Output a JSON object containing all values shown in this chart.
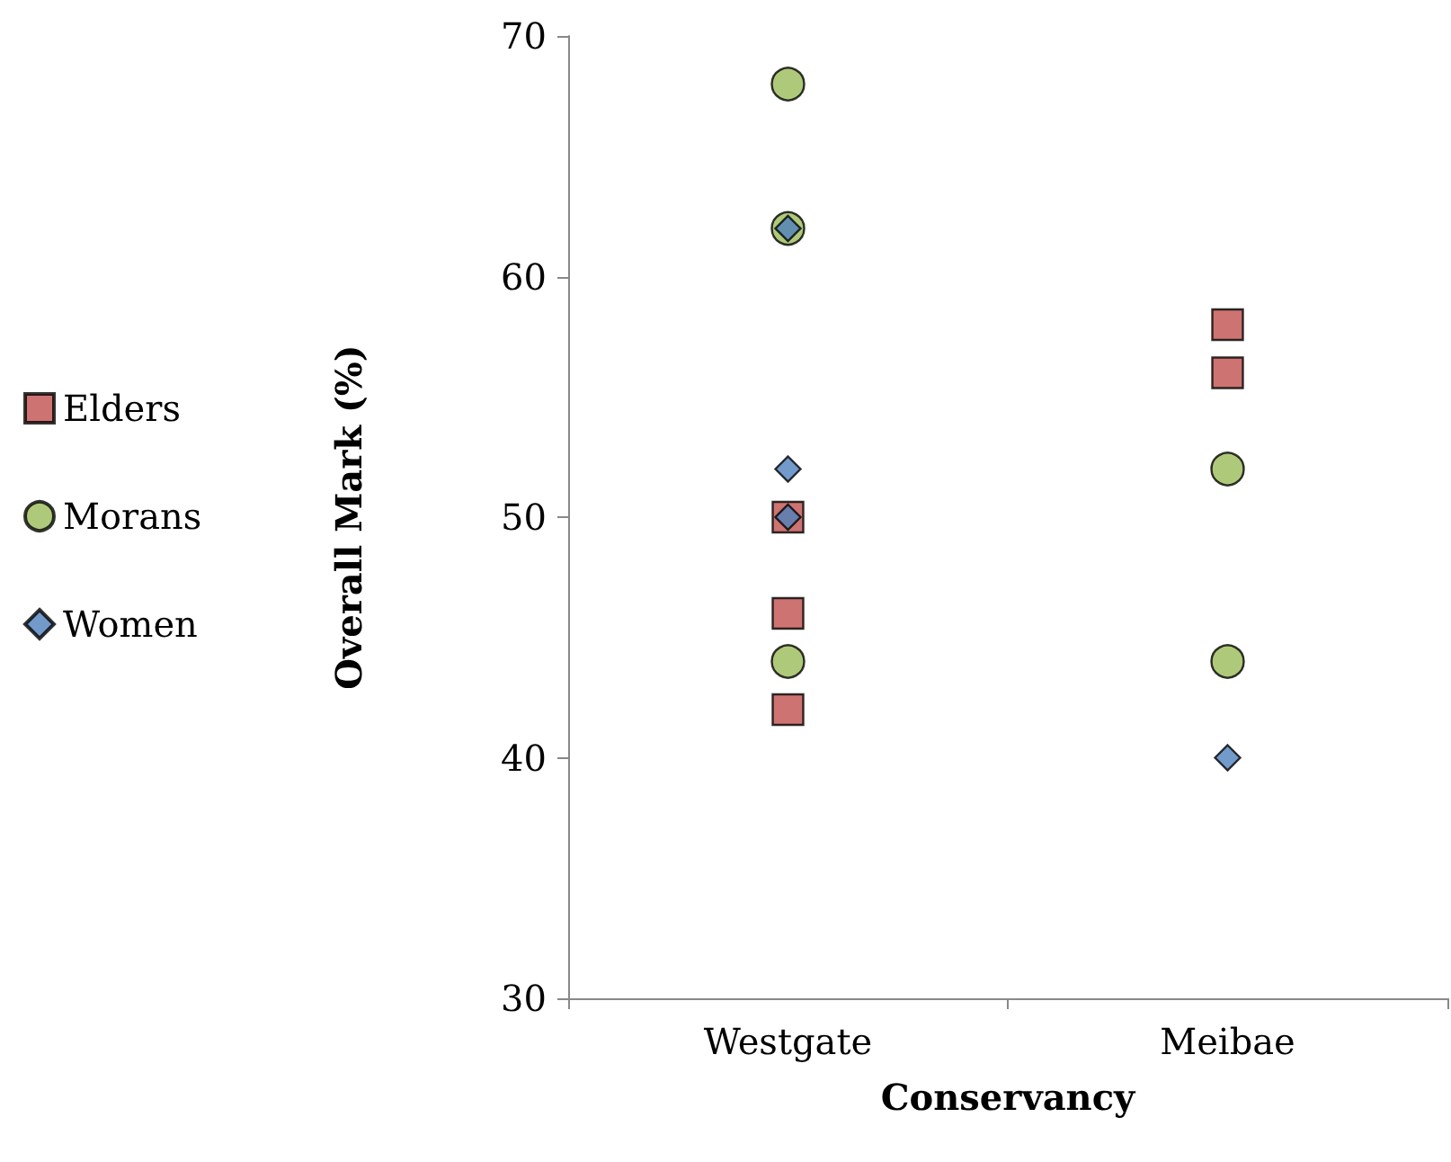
{
  "chart_data": {
    "type": "scatter",
    "xlabel": "Conservancy",
    "ylabel": "Overall Mark (%)",
    "categories": [
      "Westgate",
      "Meibae"
    ],
    "ylim": [
      30,
      70
    ],
    "yticks": [
      30,
      40,
      50,
      60,
      70
    ],
    "grid": false,
    "legend": "left",
    "series": [
      {
        "name": "Elders",
        "color": "#c0504d",
        "marker": "square",
        "x": [
          "Westgate",
          "Westgate",
          "Westgate",
          "Meibae",
          "Meibae"
        ],
        "values": [
          50,
          46,
          42,
          58,
          56
        ]
      },
      {
        "name": "Morans",
        "color": "#9bbb59",
        "marker": "circle",
        "x": [
          "Westgate",
          "Westgate",
          "Westgate",
          "Meibae",
          "Meibae"
        ],
        "values": [
          68,
          62,
          44,
          52,
          44
        ]
      },
      {
        "name": "Women",
        "color": "#4f81bd",
        "marker": "diamond",
        "x": [
          "Westgate",
          "Westgate",
          "Westgate",
          "Meibae"
        ],
        "values": [
          62,
          52,
          50,
          40
        ]
      }
    ]
  }
}
